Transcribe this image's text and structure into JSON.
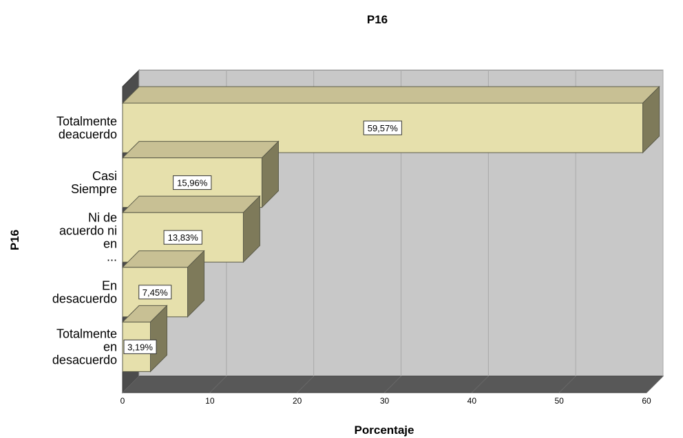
{
  "chart_data": {
    "type": "bar",
    "orientation": "horizontal",
    "style": "3d",
    "title": "P16",
    "xlabel": "Porcentaje",
    "ylabel": "P16",
    "xlim": [
      0,
      60
    ],
    "xticks": [
      "0",
      "10",
      "20",
      "30",
      "40",
      "50",
      "60"
    ],
    "grid": true,
    "legend": "none",
    "categories": [
      [
        "Totalmente",
        "deacuerdo"
      ],
      [
        "Casi",
        "Siempre"
      ],
      [
        "Ni de",
        "acuerdo ni",
        "en",
        "..."
      ],
      [
        "En",
        "desacuerdo"
      ],
      [
        "Totalmente",
        "en",
        "desacuerdo"
      ]
    ],
    "values": [
      59.57,
      15.96,
      13.83,
      7.45,
      3.19
    ],
    "data_labels": [
      "59,57%",
      "15,96%",
      "13,83%",
      "7,45%",
      "3,19%"
    ],
    "colors": {
      "bar_front": "#E6E0AC",
      "bar_top": "#C8C094",
      "bar_side": "#7E7A5A",
      "bar_outline": "#5A5A48",
      "plot_back": "#C8C8C8",
      "plot_left": "#4C4C4C",
      "plot_floor": "#585858",
      "gridline": "#A8A8A8",
      "text": "#000000"
    }
  }
}
